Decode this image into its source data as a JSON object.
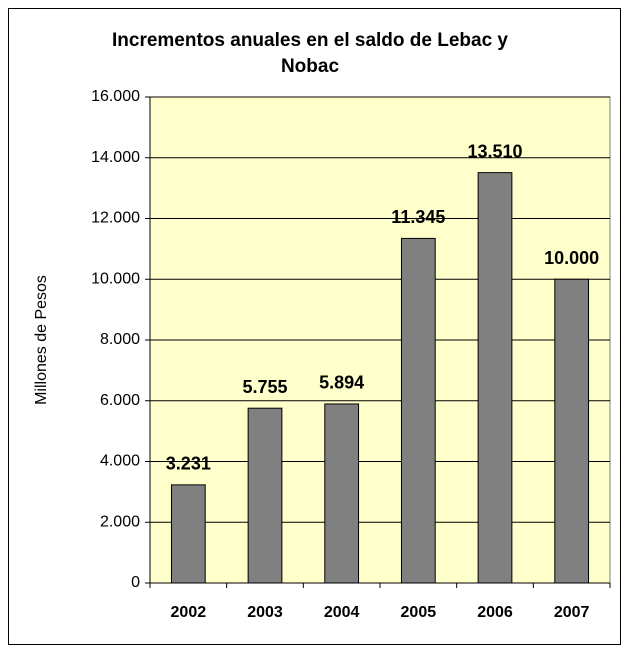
{
  "chart_data": {
    "type": "bar",
    "title": "Incrementos anuales en el saldo de Lebac y Nobac",
    "y_label": "Millones de Pesos",
    "categories": [
      "2002",
      "2003",
      "2004",
      "2005",
      "2006",
      "2007"
    ],
    "values": [
      3231,
      5755,
      5894,
      11345,
      13510,
      10000
    ],
    "value_labels": [
      "3.231",
      "5.755",
      "5.894",
      "11.345",
      "13.510",
      "10.000"
    ],
    "color": "#808080",
    "plot_background": "#ffffcc",
    "ylim": [
      0,
      16000
    ],
    "yticks": [
      0,
      {
        "value": 2000,
        "label": "2.000"
      },
      {
        "value": 4000,
        "label": "4.000"
      },
      {
        "value": 6000,
        "label": "6.000"
      },
      {
        "value": 8000,
        "label": "8.000"
      },
      {
        "value": 10000,
        "label": "10.000"
      },
      {
        "value": 12000,
        "label": "12.000"
      },
      {
        "value": 14000,
        "label": "14.000"
      },
      {
        "value": 16000,
        "label": "16.000"
      }
    ],
    "grid": true
  }
}
